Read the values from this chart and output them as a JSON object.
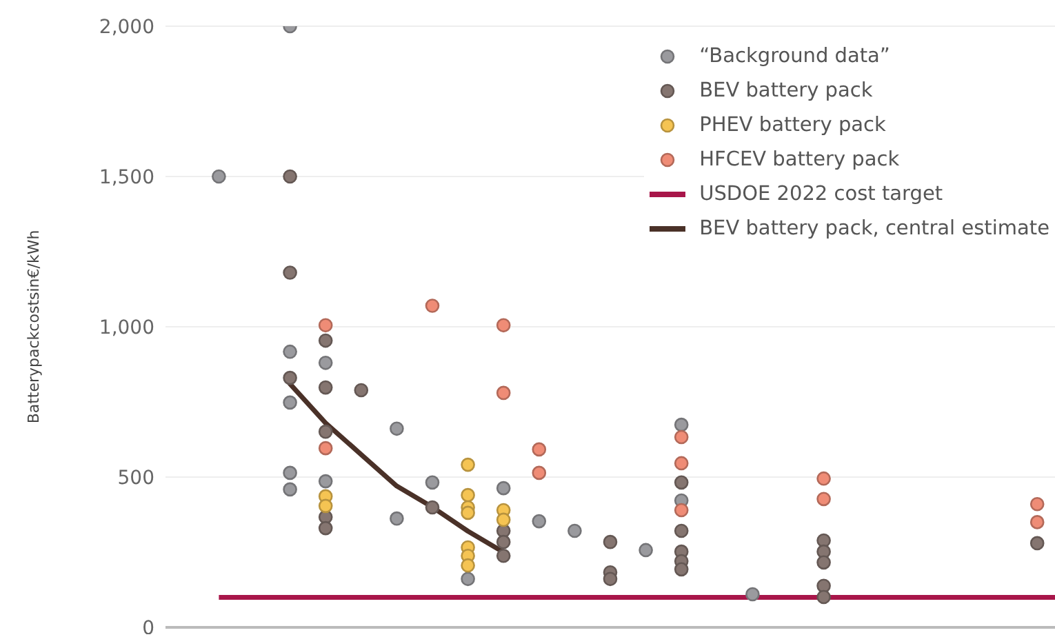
{
  "chart_data": {
    "type": "scatter",
    "ylabel": "Batterypackcostsin€/kWh",
    "ylim": [
      0,
      2000
    ],
    "categories": [
      null,
      null,
      null,
      null,
      null,
      null,
      null,
      null,
      null,
      null,
      null,
      null,
      null,
      null,
      null,
      null,
      null,
      null,
      null,
      null,
      null,
      null,
      null,
      null,
      null
    ],
    "yticks": [
      {
        "value": 0,
        "label": "0"
      },
      {
        "value": 500,
        "label": "500"
      },
      {
        "value": 1000,
        "label": "1,000"
      },
      {
        "value": 1500,
        "label": "1,500"
      },
      {
        "value": 2000,
        "label": "2,000"
      }
    ],
    "grid": "y",
    "legend": "top right",
    "tick_labels": "y",
    "marker": "circle",
    "ref_lines": [
      {
        "axis": "y",
        "value": 100,
        "label": "USDOE 2022 cost target",
        "color": "#a8164a"
      }
    ],
    "series": [
      {
        "name": "“Background data”",
        "color": "#9a9a9e",
        "values": [
          null,
          1500,
          null,
          2000,
          880,
          null,
          661,
          482,
          161,
          463,
          353,
          321,
          null,
          257,
          674,
          null,
          110,
          null,
          null,
          null,
          null,
          null,
          null,
          null,
          null
        ]
      },
      {
        "color": "#9a9a9e",
        "values": [
          null,
          null,
          null,
          917,
          486,
          null,
          362,
          null,
          null,
          null,
          null,
          null,
          null,
          null,
          422,
          null,
          null,
          null,
          null,
          null,
          null,
          null,
          null,
          null,
          null
        ]
      },
      {
        "color": "#9a9a9e",
        "values": [
          null,
          null,
          null,
          748,
          null,
          null,
          null,
          null,
          null,
          null,
          null,
          null,
          null,
          null,
          null,
          null,
          null,
          null,
          null,
          null,
          null,
          null,
          null,
          null,
          null
        ]
      },
      {
        "color": "#9a9a9e",
        "values": [
          null,
          null,
          null,
          514,
          null,
          null,
          null,
          null,
          null,
          null,
          null,
          null,
          null,
          null,
          null,
          null,
          null,
          null,
          null,
          null,
          null,
          null,
          null,
          null,
          null
        ]
      },
      {
        "color": "#9a9a9e",
        "values": [
          null,
          null,
          null,
          459,
          null,
          null,
          null,
          null,
          null,
          null,
          null,
          null,
          null,
          null,
          null,
          null,
          null,
          null,
          null,
          null,
          null,
          null,
          null,
          null,
          null
        ]
      },
      {
        "name": "BEV battery pack",
        "color": "#857570",
        "values": [
          null,
          null,
          null,
          1500,
          954,
          789,
          null,
          399,
          null,
          321,
          null,
          null,
          284,
          null,
          482,
          null,
          null,
          null,
          289,
          null,
          null,
          null,
          null,
          null,
          280
        ]
      },
      {
        "color": "#857570",
        "values": [
          null,
          null,
          null,
          1180,
          798,
          null,
          null,
          null,
          null,
          284,
          null,
          null,
          183,
          null,
          321,
          null,
          null,
          null,
          252,
          null,
          null,
          null,
          null,
          null,
          null
        ]
      },
      {
        "color": "#857570",
        "values": [
          null,
          null,
          null,
          830,
          651,
          null,
          null,
          null,
          null,
          238,
          null,
          null,
          161,
          null,
          252,
          null,
          null,
          null,
          216,
          null,
          null,
          null,
          null,
          null,
          null
        ]
      },
      {
        "color": "#857570",
        "values": [
          null,
          null,
          null,
          null,
          367,
          null,
          null,
          null,
          null,
          null,
          null,
          null,
          null,
          null,
          220,
          null,
          null,
          null,
          138,
          null,
          null,
          null,
          null,
          null,
          null
        ]
      },
      {
        "color": "#857570",
        "values": [
          null,
          null,
          null,
          null,
          330,
          null,
          null,
          null,
          null,
          null,
          null,
          null,
          null,
          null,
          193,
          null,
          null,
          null,
          101,
          null,
          null,
          null,
          null,
          null,
          null
        ]
      },
      {
        "name": "PHEV battery pack",
        "color": "#f5c453",
        "values": [
          null,
          null,
          null,
          null,
          436,
          null,
          null,
          null,
          541,
          390,
          null,
          null,
          null,
          null,
          null,
          null,
          null,
          null,
          null,
          null,
          null,
          null,
          null,
          null,
          null
        ]
      },
      {
        "color": "#f5c453",
        "values": [
          null,
          null,
          null,
          null,
          404,
          null,
          null,
          null,
          440,
          358,
          null,
          null,
          null,
          null,
          null,
          null,
          null,
          null,
          null,
          null,
          null,
          null,
          null,
          null,
          null
        ]
      },
      {
        "color": "#f5c453",
        "values": [
          null,
          null,
          null,
          null,
          null,
          null,
          null,
          null,
          399,
          null,
          null,
          null,
          null,
          null,
          null,
          null,
          null,
          null,
          null,
          null,
          null,
          null,
          null,
          null,
          null
        ]
      },
      {
        "color": "#f5c453",
        "values": [
          null,
          null,
          null,
          null,
          null,
          null,
          null,
          null,
          381,
          null,
          null,
          null,
          null,
          null,
          null,
          null,
          null,
          null,
          null,
          null,
          null,
          null,
          null,
          null,
          null
        ]
      },
      {
        "color": "#f5c453",
        "values": [
          null,
          null,
          null,
          null,
          null,
          null,
          null,
          null,
          266,
          null,
          null,
          null,
          null,
          null,
          null,
          null,
          null,
          null,
          null,
          null,
          null,
          null,
          null,
          null,
          null
        ]
      },
      {
        "color": "#f5c453",
        "values": [
          null,
          null,
          null,
          null,
          null,
          null,
          null,
          null,
          238,
          null,
          null,
          null,
          null,
          null,
          null,
          null,
          null,
          null,
          null,
          null,
          null,
          null,
          null,
          null,
          null
        ]
      },
      {
        "color": "#f5c453",
        "values": [
          null,
          null,
          null,
          null,
          null,
          null,
          null,
          null,
          206,
          null,
          null,
          null,
          null,
          null,
          null,
          null,
          null,
          null,
          null,
          null,
          null,
          null,
          null,
          null,
          null
        ]
      },
      {
        "name": "HFCEV battery pack",
        "color": "#ef8c76",
        "values": [
          null,
          null,
          null,
          null,
          1005,
          null,
          null,
          1070,
          null,
          1005,
          592,
          null,
          null,
          null,
          633,
          null,
          null,
          null,
          495,
          null,
          null,
          null,
          null,
          null,
          410
        ]
      },
      {
        "color": "#ef8c76",
        "values": [
          null,
          null,
          null,
          null,
          596,
          null,
          null,
          null,
          null,
          780,
          514,
          null,
          null,
          null,
          546,
          null,
          null,
          null,
          427,
          null,
          null,
          null,
          null,
          null,
          350
        ]
      },
      {
        "color": "#ef8c76",
        "values": [
          null,
          null,
          null,
          null,
          null,
          null,
          null,
          null,
          null,
          null,
          null,
          null,
          null,
          null,
          390,
          null,
          null,
          null,
          null,
          null,
          null,
          null,
          null,
          null,
          null
        ]
      },
      {
        "name": "BEV battery pack, central estimate",
        "type": "line",
        "marker": "none",
        "color": "#4a3128",
        "values": [
          null,
          null,
          null,
          810,
          680,
          575,
          470,
          400,
          320,
          250,
          null,
          null,
          null,
          null,
          null,
          null,
          null,
          null,
          null,
          null,
          null,
          null,
          null,
          null,
          null
        ]
      }
    ]
  }
}
